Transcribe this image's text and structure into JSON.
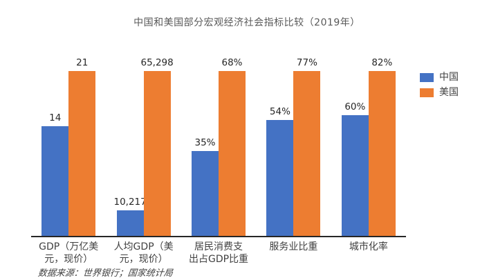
{
  "chart_data": {
    "type": "bar",
    "title": "中国和美国部分宏观经济社会指标比较（2019年）",
    "categories": [
      "GDP（万亿美元，现价）",
      "人均GDP（美元，现价）",
      "居民消费支出占GDP比重",
      "服务业比重",
      "城市化率"
    ],
    "category_display_lines": [
      [
        "GDP（万亿美",
        "元，现价）"
      ],
      [
        "人均GDP（美",
        "元，现价）"
      ],
      [
        "居民消费支",
        "出占GDP比重"
      ],
      [
        "服务业比重"
      ],
      [
        "城市化率"
      ]
    ],
    "units": [
      "万亿美元",
      "美元",
      "%",
      "%",
      "%"
    ],
    "series": [
      {
        "name": "中国",
        "color": "#4472c4",
        "values": [
          14,
          10217,
          35,
          54,
          60
        ],
        "labels": [
          "14",
          "10,217",
          "35%",
          "54%",
          "60%"
        ]
      },
      {
        "name": "美国",
        "color": "#ed7d31",
        "values": [
          21,
          65298,
          68,
          77,
          82
        ],
        "labels": [
          "21",
          "65,298",
          "68%",
          "77%",
          "82%"
        ]
      }
    ],
    "normalization": "per-category relative scale: 美国 bar drawn at full plot height, 中国 bar proportional to 中国/美国 ratio",
    "grid": false,
    "legend_position": "right",
    "xlabel": "",
    "ylabel": ""
  },
  "source_note": "数据来源：世界银行；国家统计局",
  "colors": {
    "china": "#4472c4",
    "usa": "#ed7d31",
    "axis": "#262626",
    "title_text": "#595959",
    "label_text": "#404040"
  }
}
